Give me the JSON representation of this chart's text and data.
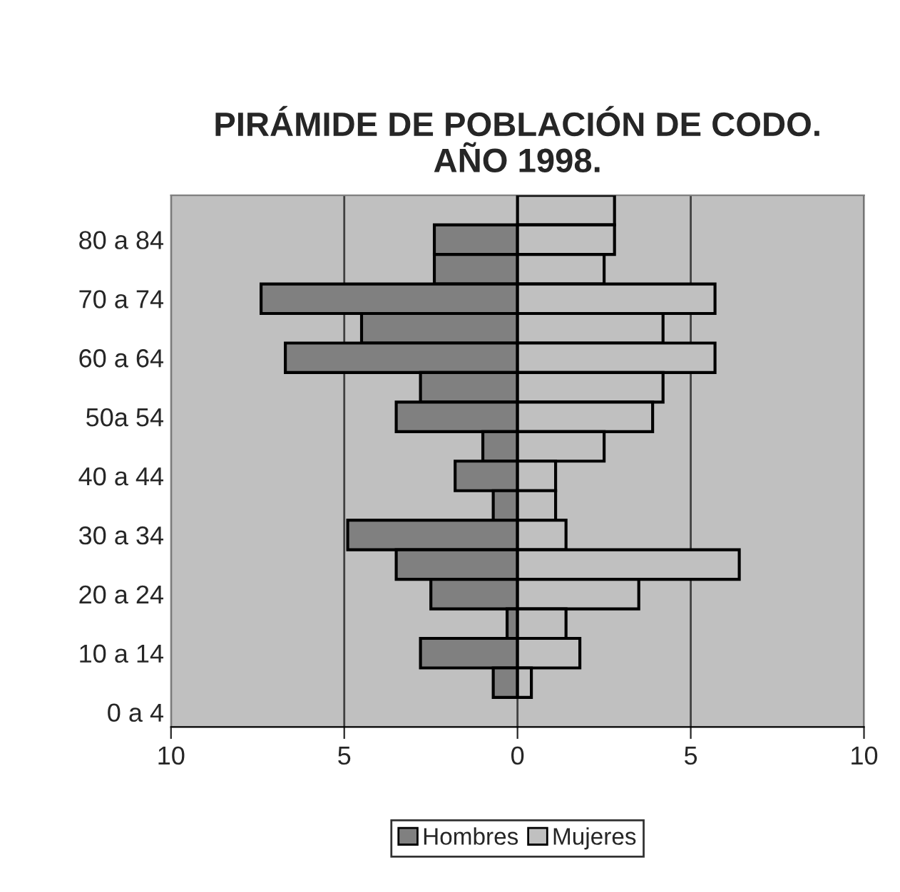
{
  "chart_data": {
    "type": "bar",
    "orientation": "horizontal",
    "title": "PIRÁMIDE DE POBLACIÓN DE CODO.\nAÑO 1998.",
    "categories": [
      null,
      "80 a 84",
      null,
      "70 a 74",
      null,
      "60 a 64",
      null,
      "50a 54",
      null,
      "40 a 44",
      null,
      "30 a 34",
      null,
      "20 a 24",
      null,
      "10 a 14",
      null,
      "0 a 4"
    ],
    "series": [
      {
        "name": "Hombres",
        "color": "#808080",
        "values": [
          null,
          -2.4,
          -2.4,
          -7.4,
          -4.5,
          -6.7,
          -2.8,
          -3.5,
          -1.0,
          -1.8,
          -0.7,
          -4.9,
          -3.5,
          -2.5,
          -0.3,
          -2.8,
          -0.7,
          null
        ]
      },
      {
        "name": "Mujeres",
        "color": "#c0c0c0",
        "values": [
          2.8,
          2.8,
          2.5,
          5.7,
          4.2,
          5.7,
          4.2,
          3.9,
          2.5,
          1.1,
          1.1,
          1.4,
          6.4,
          3.5,
          1.4,
          1.8,
          0.4,
          null
        ]
      }
    ],
    "xlim": [
      -10,
      10
    ],
    "xticks": [
      {
        "value": -10,
        "label": "10"
      },
      {
        "value": -5,
        "label": "5"
      },
      0,
      5,
      10
    ],
    "grid": "x",
    "legend": "bottom",
    "stacked": true
  }
}
